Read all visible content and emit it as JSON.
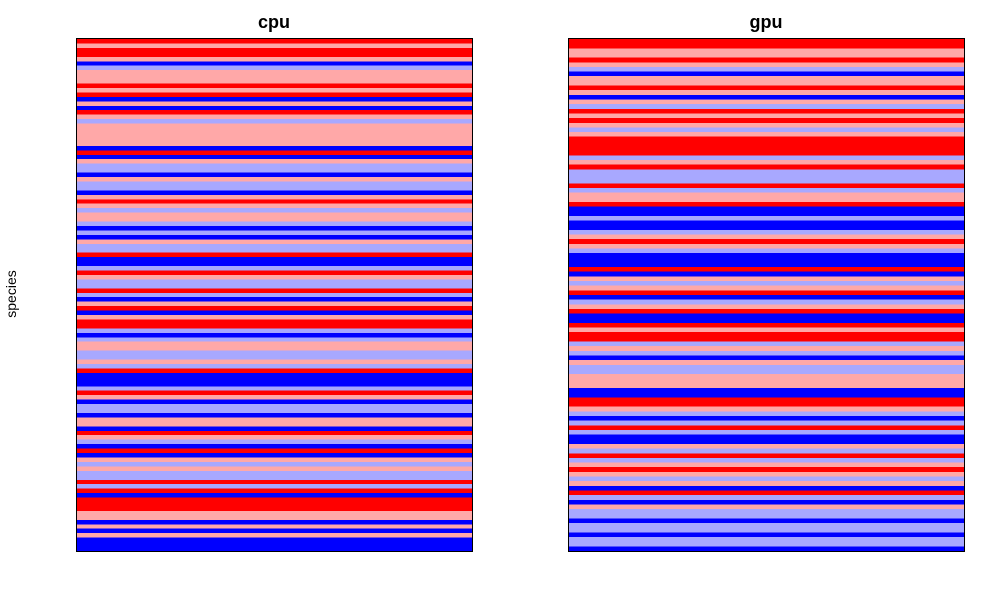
{
  "chart_data": {
    "type": "heatmap",
    "ylabel": "species",
    "legend": "none",
    "grid": false,
    "palette": {
      "2": "#FF0000",
      "1": "#FFA8A8",
      "-1": "#A8A8FF",
      "-2": "#0000FF"
    },
    "panels": [
      {
        "title": "cpu",
        "rows": [
          2,
          1,
          2,
          2,
          1,
          -2,
          -1,
          1,
          1,
          1,
          2,
          1,
          2,
          -2,
          1,
          -2,
          2,
          1,
          -1,
          1,
          1,
          1,
          1,
          1,
          -2,
          2,
          -2,
          1,
          -1,
          -1,
          -2,
          1,
          -1,
          -1,
          -2,
          1,
          2,
          1,
          -1,
          1,
          1,
          -1,
          -2,
          -1,
          -2,
          1,
          -1,
          -1,
          2,
          -2,
          -2,
          -1,
          2,
          1,
          -1,
          -1,
          2,
          -1,
          -2,
          1,
          2,
          -2,
          1,
          2,
          2,
          -1,
          -2,
          -1,
          1,
          1,
          -1,
          -1,
          1,
          -1,
          2,
          -2,
          -2,
          -2,
          -1,
          2,
          1,
          -2,
          -1,
          -1,
          -2,
          1,
          1,
          -2,
          2,
          1,
          -1,
          -2,
          2,
          -2,
          1,
          -1,
          1,
          -1,
          -1,
          2,
          -1,
          2,
          -2,
          2,
          2,
          2,
          1,
          1,
          -2,
          1,
          -2,
          1,
          -2,
          -2,
          -2
        ]
      },
      {
        "title": "gpu",
        "rows": [
          2,
          2,
          1,
          1,
          2,
          1,
          -1,
          -2,
          1,
          1,
          2,
          1,
          -2,
          1,
          -1,
          2,
          1,
          2,
          1,
          -1,
          1,
          2,
          2,
          2,
          2,
          -1,
          1,
          2,
          -1,
          -1,
          -1,
          2,
          -1,
          1,
          1,
          2,
          -2,
          -2,
          -1,
          -2,
          -2,
          -1,
          1,
          2,
          1,
          -1,
          -2,
          -2,
          -2,
          2,
          -2,
          1,
          -1,
          1,
          2,
          -2,
          -1,
          1,
          2,
          -2,
          -2,
          2,
          1,
          2,
          2,
          -1,
          1,
          -1,
          -2,
          1,
          -1,
          -1,
          1,
          1,
          1,
          -2,
          -2,
          2,
          2,
          1,
          -1,
          -2,
          -1,
          2,
          -1,
          -2,
          -2,
          1,
          -1,
          2,
          -1,
          1,
          2,
          1,
          -1,
          1,
          -2,
          2,
          -1,
          -2,
          1,
          -1,
          -1,
          -2,
          -1,
          -1,
          -2,
          -1,
          -1,
          -2
        ]
      }
    ]
  }
}
